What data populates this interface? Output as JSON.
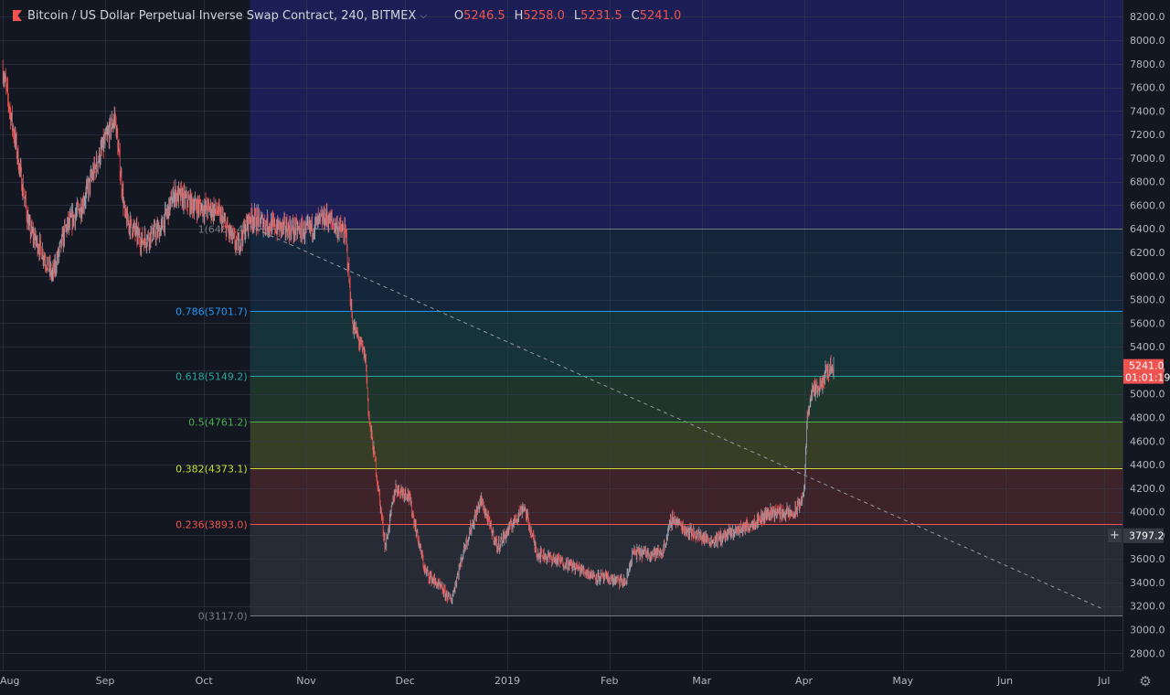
{
  "header": {
    "symbol_title": "Bitcoin / US Dollar Perpetual Inverse Swap Contract, 240, BITMEX",
    "ohlc": [
      {
        "key": "O",
        "value": "5246.5"
      },
      {
        "key": "H",
        "value": "5258.0"
      },
      {
        "key": "L",
        "value": "5231.5"
      },
      {
        "key": "C",
        "value": "5241.0"
      }
    ],
    "icons": {
      "symbol_flag": "flag-icon",
      "dropdown": "chevron-down-icon",
      "settings": "gear-icon",
      "crosshair": "plus-icon"
    }
  },
  "colors": {
    "background": "#131722",
    "grid": "#363c4e",
    "up_candle": "#9aa0ad",
    "down_candle": "#ef5350",
    "price_label_bg": "#ef5350",
    "crosshair_label_bg": "#363a45"
  },
  "chart_data": {
    "type": "candlestick",
    "title": "Bitcoin / US Dollar Perpetual Inverse Swap Contract, 240, BITMEX",
    "y_axis": {
      "ticks": [
        "8200.0",
        "8000.0",
        "7800.0",
        "7600.0",
        "7400.0",
        "7200.0",
        "7000.0",
        "6800.0",
        "6600.0",
        "6400.0",
        "6200.0",
        "6000.0",
        "5800.0",
        "5600.0",
        "5400.0",
        "5200.0",
        "5000.0",
        "4800.0",
        "4600.0",
        "4400.0",
        "4200.0",
        "4000.0",
        "3800.0",
        "3600.0",
        "3400.0",
        "3200.0",
        "3000.0",
        "2800.0"
      ],
      "ylim": [
        2700,
        8300
      ],
      "position": "right"
    },
    "x_axis": {
      "ticks": [
        "Aug",
        "Sep",
        "Oct",
        "Nov",
        "Dec",
        "2019",
        "Feb",
        "Mar",
        "Apr",
        "May",
        "Jun",
        "Jul"
      ]
    },
    "price_path": [
      {
        "date": "2018-08-01",
        "price": 7750
      },
      {
        "date": "2018-08-05",
        "price": 7100
      },
      {
        "date": "2018-08-09",
        "price": 6400
      },
      {
        "date": "2018-08-13",
        "price": 6200
      },
      {
        "date": "2018-08-16",
        "price": 6000
      },
      {
        "date": "2018-08-20",
        "price": 6400
      },
      {
        "date": "2018-08-25",
        "price": 6600
      },
      {
        "date": "2018-08-30",
        "price": 7000
      },
      {
        "date": "2018-09-04",
        "price": 7350
      },
      {
        "date": "2018-09-07",
        "price": 6500
      },
      {
        "date": "2018-09-12",
        "price": 6300
      },
      {
        "date": "2018-09-18",
        "price": 6400
      },
      {
        "date": "2018-09-22",
        "price": 6700
      },
      {
        "date": "2018-09-28",
        "price": 6600
      },
      {
        "date": "2018-10-05",
        "price": 6550
      },
      {
        "date": "2018-10-11",
        "price": 6250
      },
      {
        "date": "2018-10-15",
        "price": 6500
      },
      {
        "date": "2018-10-22",
        "price": 6420
      },
      {
        "date": "2018-11-01",
        "price": 6380
      },
      {
        "date": "2018-11-07",
        "price": 6500
      },
      {
        "date": "2018-11-13",
        "price": 6350
      },
      {
        "date": "2018-11-15",
        "price": 5600
      },
      {
        "date": "2018-11-19",
        "price": 5300
      },
      {
        "date": "2018-11-20",
        "price": 4800
      },
      {
        "date": "2018-11-22",
        "price": 4400
      },
      {
        "date": "2018-11-25",
        "price": 3700
      },
      {
        "date": "2018-11-28",
        "price": 4200
      },
      {
        "date": "2018-12-02",
        "price": 4150
      },
      {
        "date": "2018-12-07",
        "price": 3500
      },
      {
        "date": "2018-12-15",
        "price": 3250
      },
      {
        "date": "2018-12-19",
        "price": 3700
      },
      {
        "date": "2018-12-24",
        "price": 4100
      },
      {
        "date": "2018-12-29",
        "price": 3700
      },
      {
        "date": "2019-01-06",
        "price": 4050
      },
      {
        "date": "2019-01-10",
        "price": 3650
      },
      {
        "date": "2019-01-20",
        "price": 3550
      },
      {
        "date": "2019-01-28",
        "price": 3450
      },
      {
        "date": "2019-02-06",
        "price": 3400
      },
      {
        "date": "2019-02-08",
        "price": 3650
      },
      {
        "date": "2019-02-17",
        "price": 3650
      },
      {
        "date": "2019-02-20",
        "price": 3950
      },
      {
        "date": "2019-02-24",
        "price": 3850
      },
      {
        "date": "2019-03-04",
        "price": 3750
      },
      {
        "date": "2019-03-15",
        "price": 3880
      },
      {
        "date": "2019-03-22",
        "price": 4000
      },
      {
        "date": "2019-03-29",
        "price": 3980
      },
      {
        "date": "2019-04-01",
        "price": 4150
      },
      {
        "date": "2019-04-02",
        "price": 4800
      },
      {
        "date": "2019-04-03",
        "price": 5000
      },
      {
        "date": "2019-04-06",
        "price": 5050
      },
      {
        "date": "2019-04-08",
        "price": 5200
      },
      {
        "date": "2019-04-10",
        "price": 5241
      }
    ],
    "last_price": "5241.0",
    "countdown": "01:01:19",
    "crosshair_price": "3797.2",
    "fibonacci": {
      "levels": [
        {
          "ratio": 1,
          "label": "1(6405.4)",
          "price": 6405.4,
          "color": "#787b86"
        },
        {
          "ratio": 0.786,
          "label": "0.786(5701.7)",
          "price": 5701.7,
          "color": "#2196f3"
        },
        {
          "ratio": 0.618,
          "label": "0.618(5149.2)",
          "price": 5149.2,
          "color": "#26a69a"
        },
        {
          "ratio": 0.5,
          "label": "0.5(4761.2)",
          "price": 4761.2,
          "color": "#4caf50"
        },
        {
          "ratio": 0.382,
          "label": "0.382(4373.1)",
          "price": 4373.1,
          "color": "#cddc39"
        },
        {
          "ratio": 0.236,
          "label": "0.236(3893.0)",
          "price": 3893.0,
          "color": "#ef5350"
        },
        {
          "ratio": 0,
          "label": "0(3117.0)",
          "price": 3117.0,
          "color": "#787b86"
        }
      ]
    },
    "trendline": {
      "from": {
        "date": "2018-10-15",
        "price": 6420
      },
      "to": {
        "date": "2019-07-01",
        "price": 3170
      },
      "style": "dashed"
    },
    "grid": true
  }
}
